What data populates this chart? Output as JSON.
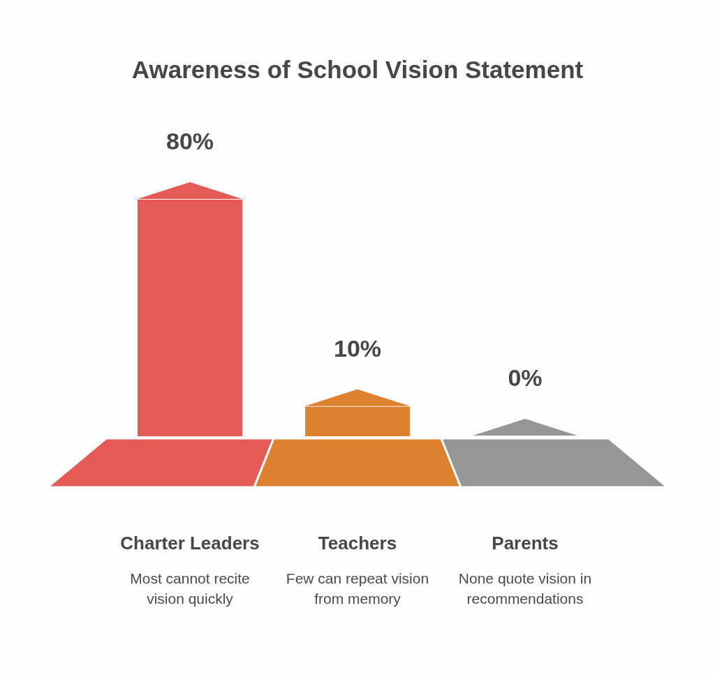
{
  "chart_data": {
    "type": "bar",
    "title": "Awareness of School Vision Statement",
    "categories": [
      "Charter Leaders",
      "Teachers",
      "Parents"
    ],
    "values": [
      80,
      10,
      0
    ],
    "colors": [
      "#e55a55",
      "#dd8330",
      "#969696"
    ],
    "value_labels": [
      "80%",
      "10%",
      "0%"
    ],
    "annotations": [
      "Most cannot recite vision quickly",
      "Few can repeat vision from memory",
      "None quote vision in recommendations"
    ]
  }
}
